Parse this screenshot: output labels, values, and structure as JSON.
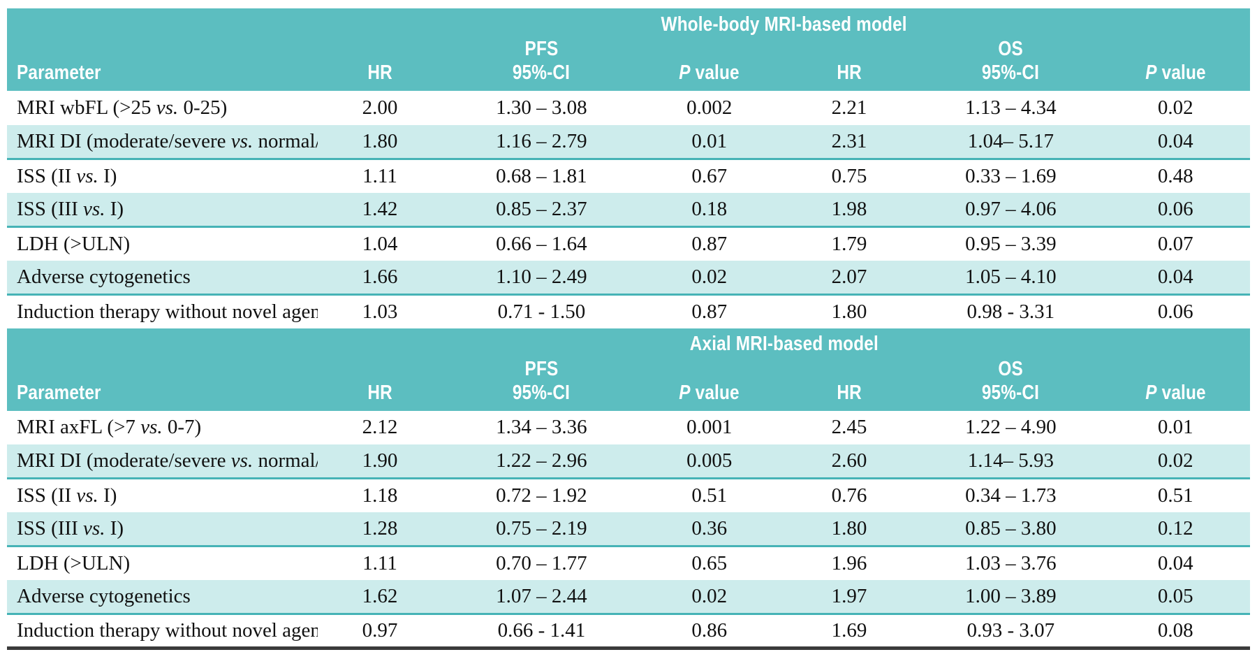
{
  "colors": {
    "header_teal": "#5cbec0",
    "row_shade": "#cdecec",
    "shade_rule": "#46b3b6",
    "bottom_rule": "#3b3b3b"
  },
  "columns": {
    "parameter": "Parameter",
    "hr": "HR",
    "ci": "95%-CI",
    "p_italic": "P",
    "p_word": "value",
    "pfs": "PFS",
    "os": "OS"
  },
  "tables": [
    {
      "title": "Whole-body MRI-based model",
      "rows": [
        {
          "param_pre": "MRI wbFL (>25 ",
          "param_vs": "vs.",
          "param_post": " 0-25)",
          "pfs_hr": "2.00",
          "pfs_ci": "1.30 – 3.08",
          "pfs_p": "0.002",
          "os_hr": "2.21",
          "os_ci": "1.13 – 4.34",
          "os_p": "0.02"
        },
        {
          "param_pre": "MRI DI (moderate/severe ",
          "param_vs": "vs.",
          "param_post": " normal/S&P)",
          "pfs_hr": "1.80",
          "pfs_ci": "1.16 – 2.79",
          "pfs_p": "0.01",
          "os_hr": "2.31",
          "os_ci": "1.04– 5.17",
          "os_p": "0.04"
        },
        {
          "param_pre": "ISS (II ",
          "param_vs": "vs.",
          "param_post": " I)",
          "pfs_hr": "1.11",
          "pfs_ci": "0.68 – 1.81",
          "pfs_p": "0.67",
          "os_hr": "0.75",
          "os_ci": "0.33 – 1.69",
          "os_p": "0.48"
        },
        {
          "param_pre": "ISS (III ",
          "param_vs": "vs.",
          "param_post": " I)",
          "pfs_hr": "1.42",
          "pfs_ci": "0.85 – 2.37",
          "pfs_p": "0.18",
          "os_hr": "1.98",
          "os_ci": "0.97 – 4.06",
          "os_p": "0.06"
        },
        {
          "param_pre": "LDH (>ULN)",
          "param_vs": "",
          "param_post": "",
          "pfs_hr": "1.04",
          "pfs_ci": "0.66 – 1.64",
          "pfs_p": "0.87",
          "os_hr": "1.79",
          "os_ci": "0.95 – 3.39",
          "os_p": "0.07"
        },
        {
          "param_pre": "Adverse cytogenetics",
          "param_vs": "",
          "param_post": "",
          "pfs_hr": "1.66",
          "pfs_ci": "1.10 – 2.49",
          "pfs_p": "0.02",
          "os_hr": "2.07",
          "os_ci": "1.05 – 4.10",
          "os_p": "0.04"
        },
        {
          "param_pre": "Induction therapy without novel agents",
          "param_vs": "",
          "param_post": "",
          "pfs_hr": "1.03",
          "pfs_ci": "0.71 - 1.50",
          "pfs_p": "0.87",
          "os_hr": "1.80",
          "os_ci": "0.98 - 3.31",
          "os_p": "0.06"
        }
      ]
    },
    {
      "title": "Axial MRI-based model",
      "rows": [
        {
          "param_pre": "MRI axFL (>7 ",
          "param_vs": "vs.",
          "param_post": " 0-7)",
          "pfs_hr": "2.12",
          "pfs_ci": "1.34 – 3.36",
          "pfs_p": "0.001",
          "os_hr": "2.45",
          "os_ci": "1.22 – 4.90",
          "os_p": "0.01"
        },
        {
          "param_pre": "MRI DI (moderate/severe ",
          "param_vs": "vs.",
          "param_post": " normal/S&P)",
          "pfs_hr": "1.90",
          "pfs_ci": "1.22 – 2.96",
          "pfs_p": "0.005",
          "os_hr": "2.60",
          "os_ci": "1.14– 5.93",
          "os_p": "0.02"
        },
        {
          "param_pre": "ISS (II ",
          "param_vs": "vs.",
          "param_post": " I)",
          "pfs_hr": "1.18",
          "pfs_ci": "0.72 – 1.92",
          "pfs_p": "0.51",
          "os_hr": "0.76",
          "os_ci": "0.34 – 1.73",
          "os_p": "0.51"
        },
        {
          "param_pre": "ISS (III ",
          "param_vs": "vs.",
          "param_post": " I)",
          "pfs_hr": "1.28",
          "pfs_ci": "0.75 – 2.19",
          "pfs_p": "0.36",
          "os_hr": "1.80",
          "os_ci": "0.85 – 3.80",
          "os_p": "0.12"
        },
        {
          "param_pre": "LDH (>ULN)",
          "param_vs": "",
          "param_post": "",
          "pfs_hr": "1.11",
          "pfs_ci": "0.70 – 1.77",
          "pfs_p": "0.65",
          "os_hr": "1.96",
          "os_ci": "1.03 – 3.76",
          "os_p": "0.04"
        },
        {
          "param_pre": "Adverse cytogenetics",
          "param_vs": "",
          "param_post": "",
          "pfs_hr": "1.62",
          "pfs_ci": "1.07 – 2.44",
          "pfs_p": "0.02",
          "os_hr": "1.97",
          "os_ci": "1.00 – 3.89",
          "os_p": "0.05"
        },
        {
          "param_pre": "Induction therapy without novel agents",
          "param_vs": "",
          "param_post": "",
          "pfs_hr": "0.97",
          "pfs_ci": "0.66 - 1.41",
          "pfs_p": "0.86",
          "os_hr": "1.69",
          "os_ci": "0.93 - 3.07",
          "os_p": "0.08"
        }
      ]
    }
  ]
}
